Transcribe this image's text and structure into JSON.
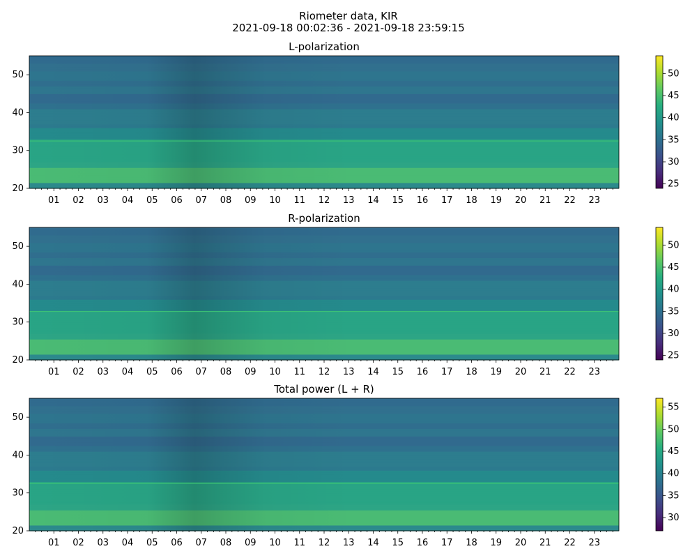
{
  "figure": {
    "title_line1": "Riometer data, KIR",
    "title_line2": "2021-09-18 00:02:36 - 2021-09-18 23:59:15"
  },
  "chart_data": [
    {
      "type": "heatmap",
      "title": "L-polarization",
      "xlim": [
        0,
        24
      ],
      "ylim": [
        20,
        55
      ],
      "x_tick_labels": [
        "01",
        "02",
        "03",
        "04",
        "05",
        "06",
        "07",
        "08",
        "09",
        "10",
        "11",
        "12",
        "13",
        "14",
        "15",
        "16",
        "17",
        "18",
        "19",
        "20",
        "21",
        "22",
        "23"
      ],
      "y_ticks": [
        20,
        30,
        40,
        50
      ],
      "colorbar": {
        "range": [
          24,
          54
        ],
        "ticks": [
          25,
          30,
          35,
          40,
          45,
          50
        ],
        "colormap": "viridis"
      },
      "line_artifact_y": 32.5
    },
    {
      "type": "heatmap",
      "title": "R-polarization",
      "xlim": [
        0,
        24
      ],
      "ylim": [
        20,
        55
      ],
      "x_tick_labels": [
        "01",
        "02",
        "03",
        "04",
        "05",
        "06",
        "07",
        "08",
        "09",
        "10",
        "11",
        "12",
        "13",
        "14",
        "15",
        "16",
        "17",
        "18",
        "19",
        "20",
        "21",
        "22",
        "23"
      ],
      "y_ticks": [
        20,
        30,
        40,
        50
      ],
      "colorbar": {
        "range": [
          24,
          54
        ],
        "ticks": [
          25,
          30,
          35,
          40,
          45,
          50
        ],
        "colormap": "viridis"
      },
      "line_artifact_y": 32.8
    },
    {
      "type": "heatmap",
      "title": "Total power (L + R)",
      "xlim": [
        0,
        24
      ],
      "ylim": [
        20,
        55
      ],
      "x_tick_labels": [
        "01",
        "02",
        "03",
        "04",
        "05",
        "06",
        "07",
        "08",
        "09",
        "10",
        "11",
        "12",
        "13",
        "14",
        "15",
        "16",
        "17",
        "18",
        "19",
        "20",
        "21",
        "22",
        "23"
      ],
      "y_ticks": [
        20,
        30,
        40,
        50
      ],
      "colorbar": {
        "range": [
          27,
          57
        ],
        "ticks": [
          30,
          35,
          40,
          45,
          50,
          55
        ],
        "colormap": "viridis"
      },
      "line_artifact_y": 32.5
    }
  ]
}
